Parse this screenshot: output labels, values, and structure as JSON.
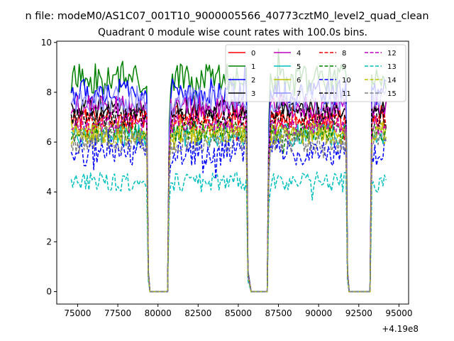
{
  "figure": {
    "suptitle": "n file: modeM0/AS1C07_001T10_9000005566_40773cztM0_level2_quad_clean",
    "title": "Quadrant 0 module wise count rates with 100.0s bins.",
    "offset_label": "+4.19e8"
  },
  "chart_data": {
    "type": "line",
    "title": "Quadrant 0 module wise count rates with 100.0s bins.",
    "xlabel": "",
    "ylabel": "",
    "xlim": [
      73700,
      95600
    ],
    "ylim": [
      -0.5,
      10.05
    ],
    "x_offset": 419000000,
    "x_ticks": [
      75000,
      77500,
      80000,
      82500,
      85000,
      87500,
      90000,
      92500,
      95000
    ],
    "x_tick_labels": [
      "75000",
      "77500",
      "80000",
      "82500",
      "85000",
      "87500",
      "90000",
      "92500",
      "95000"
    ],
    "y_ticks": [
      0,
      2,
      4,
      6,
      8,
      10
    ],
    "y_tick_labels": [
      "0",
      "2",
      "4",
      "6",
      "8",
      "10"
    ],
    "grid": false,
    "legend_position": "top-right",
    "legend_columns": 4,
    "segments": [
      {
        "start": 74600,
        "end": 79300
      },
      {
        "start": 80800,
        "end": 85500
      },
      {
        "start": 87000,
        "end": 91700
      },
      {
        "start": 93300,
        "end": 94200
      }
    ],
    "gaps": [
      {
        "start": 79500,
        "end": 80600
      },
      {
        "start": 85800,
        "end": 86800
      },
      {
        "start": 91900,
        "end": 93200
      }
    ],
    "series": [
      {
        "name": "0",
        "color": "#ff0000",
        "dash": "solid",
        "level": 7.0,
        "noise": 0.3
      },
      {
        "name": "1",
        "color": "#008000",
        "dash": "solid",
        "level": 8.5,
        "noise": 0.4
      },
      {
        "name": "2",
        "color": "#0000ff",
        "dash": "solid",
        "level": 8.0,
        "noise": 0.35
      },
      {
        "name": "3",
        "color": "#000000",
        "dash": "solid",
        "level": 7.3,
        "noise": 0.25
      },
      {
        "name": "4",
        "color": "#bf00bf",
        "dash": "solid",
        "level": 7.4,
        "noise": 0.3
      },
      {
        "name": "5",
        "color": "#00bfbf",
        "dash": "solid",
        "level": 6.3,
        "noise": 0.3
      },
      {
        "name": "6",
        "color": "#bfbf00",
        "dash": "solid",
        "level": 6.4,
        "noise": 0.3
      },
      {
        "name": "7",
        "color": "#9090ff",
        "dash": "solid",
        "level": 7.7,
        "noise": 0.35
      },
      {
        "name": "8",
        "color": "#ff0000",
        "dash": "dashed",
        "level": 6.8,
        "noise": 0.25
      },
      {
        "name": "9",
        "color": "#008000",
        "dash": "dashed",
        "level": 6.4,
        "noise": 0.25
      },
      {
        "name": "10",
        "color": "#0000ff",
        "dash": "dashed",
        "level": 5.6,
        "noise": 0.35
      },
      {
        "name": "11",
        "color": "#000000",
        "dash": "dashed",
        "level": 7.0,
        "noise": 0.25
      },
      {
        "name": "12",
        "color": "#bf00bf",
        "dash": "dashed",
        "level": 6.7,
        "noise": 0.25
      },
      {
        "name": "13",
        "color": "#00bfbf",
        "dash": "dashed",
        "level": 4.4,
        "noise": 0.25
      },
      {
        "name": "14",
        "color": "#bfbf00",
        "dash": "dashed",
        "level": 6.3,
        "noise": 0.25
      },
      {
        "name": "15",
        "color": "#808080",
        "dash": "dashed",
        "level": 6.0,
        "noise": 0.3
      }
    ]
  }
}
